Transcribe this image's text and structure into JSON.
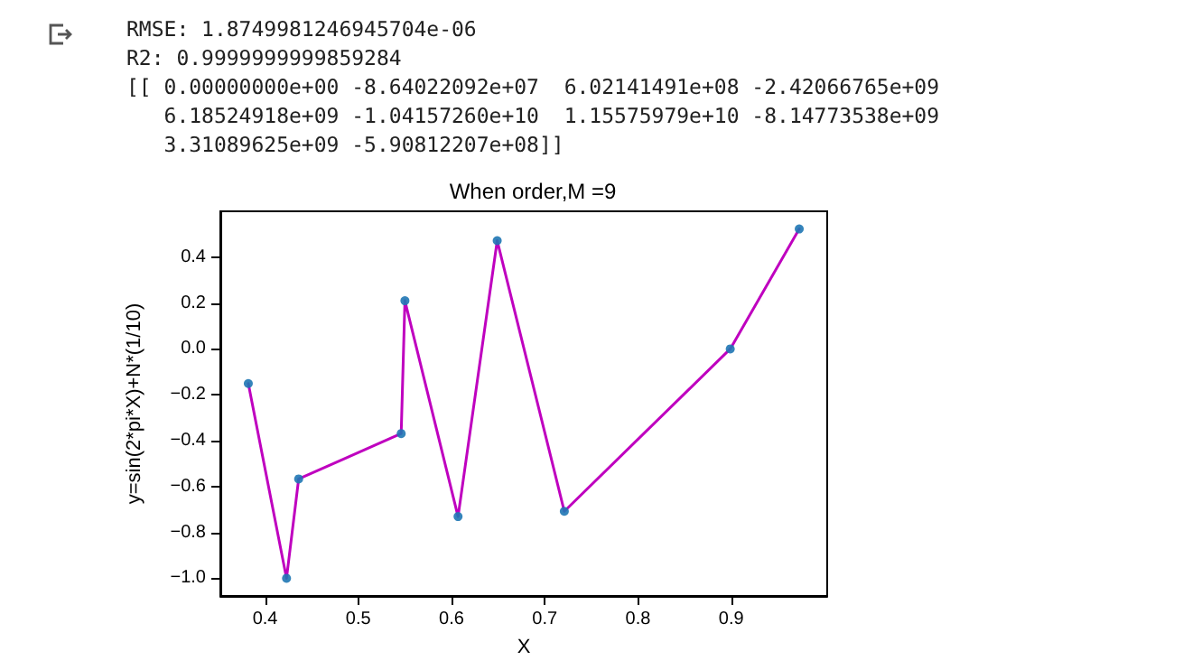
{
  "chart_data": {
    "type": "line",
    "title": "When order,M =9",
    "xlabel": "X",
    "ylabel": "y=sin(2*pi*X)+N*(1/10)",
    "annotations": [
      "RMSE: 1.8749981246945704e-06",
      "R2: 0.9999999999859284",
      "[[ 0.00000000e+00 -8.64022092e+07  6.02141491e+08 -2.42066765e+09",
      "   6.18524918e+09 -1.04157260e+10  1.15575979e+10 -8.14773538e+09",
      "   3.31089625e+09 -5.90812207e+08]]"
    ],
    "x": [
      0.382,
      0.423,
      0.436,
      0.546,
      0.55,
      0.607,
      0.649,
      0.721,
      0.899,
      0.973
    ],
    "series": [
      {
        "color": "#bf00bf",
        "marker": "none",
        "values": [
          -0.151,
          -1.0,
          -0.567,
          -0.369,
          0.21,
          -0.731,
          0.472,
          -0.708,
          0.0,
          0.523
        ]
      },
      {
        "type": "scatter",
        "color": "#1f77b4",
        "marker": "circle",
        "values": [
          -0.151,
          -1.0,
          -0.567,
          -0.369,
          0.21,
          -0.731,
          0.472,
          -0.708,
          0.0,
          0.523
        ]
      }
    ],
    "xlim": [
      0.352,
      1.003
    ],
    "xticks": [
      {
        "value": 0.4,
        "label": "0.4"
      },
      {
        "value": 0.5,
        "label": "0.5"
      },
      {
        "value": 0.6,
        "label": "0.6"
      },
      {
        "value": 0.7,
        "label": "0.7"
      },
      {
        "value": 0.8,
        "label": "0.8"
      },
      {
        "value": 0.9,
        "label": "0.9"
      }
    ],
    "ylim": [
      -1.077,
      0.6
    ],
    "yticks": [
      {
        "value": -1.0,
        "label": "−1.0"
      },
      {
        "value": -0.8,
        "label": "−0.8"
      },
      {
        "value": -0.6,
        "label": "−0.6"
      },
      {
        "value": -0.4,
        "label": "−0.4"
      },
      {
        "value": -0.2,
        "label": "−0.2"
      },
      {
        "value": 0.0,
        "label": "0.0"
      },
      {
        "value": 0.2,
        "label": "0.2"
      },
      {
        "value": 0.4,
        "label": "0.4"
      }
    ],
    "grid": false,
    "line_style": "solid"
  }
}
